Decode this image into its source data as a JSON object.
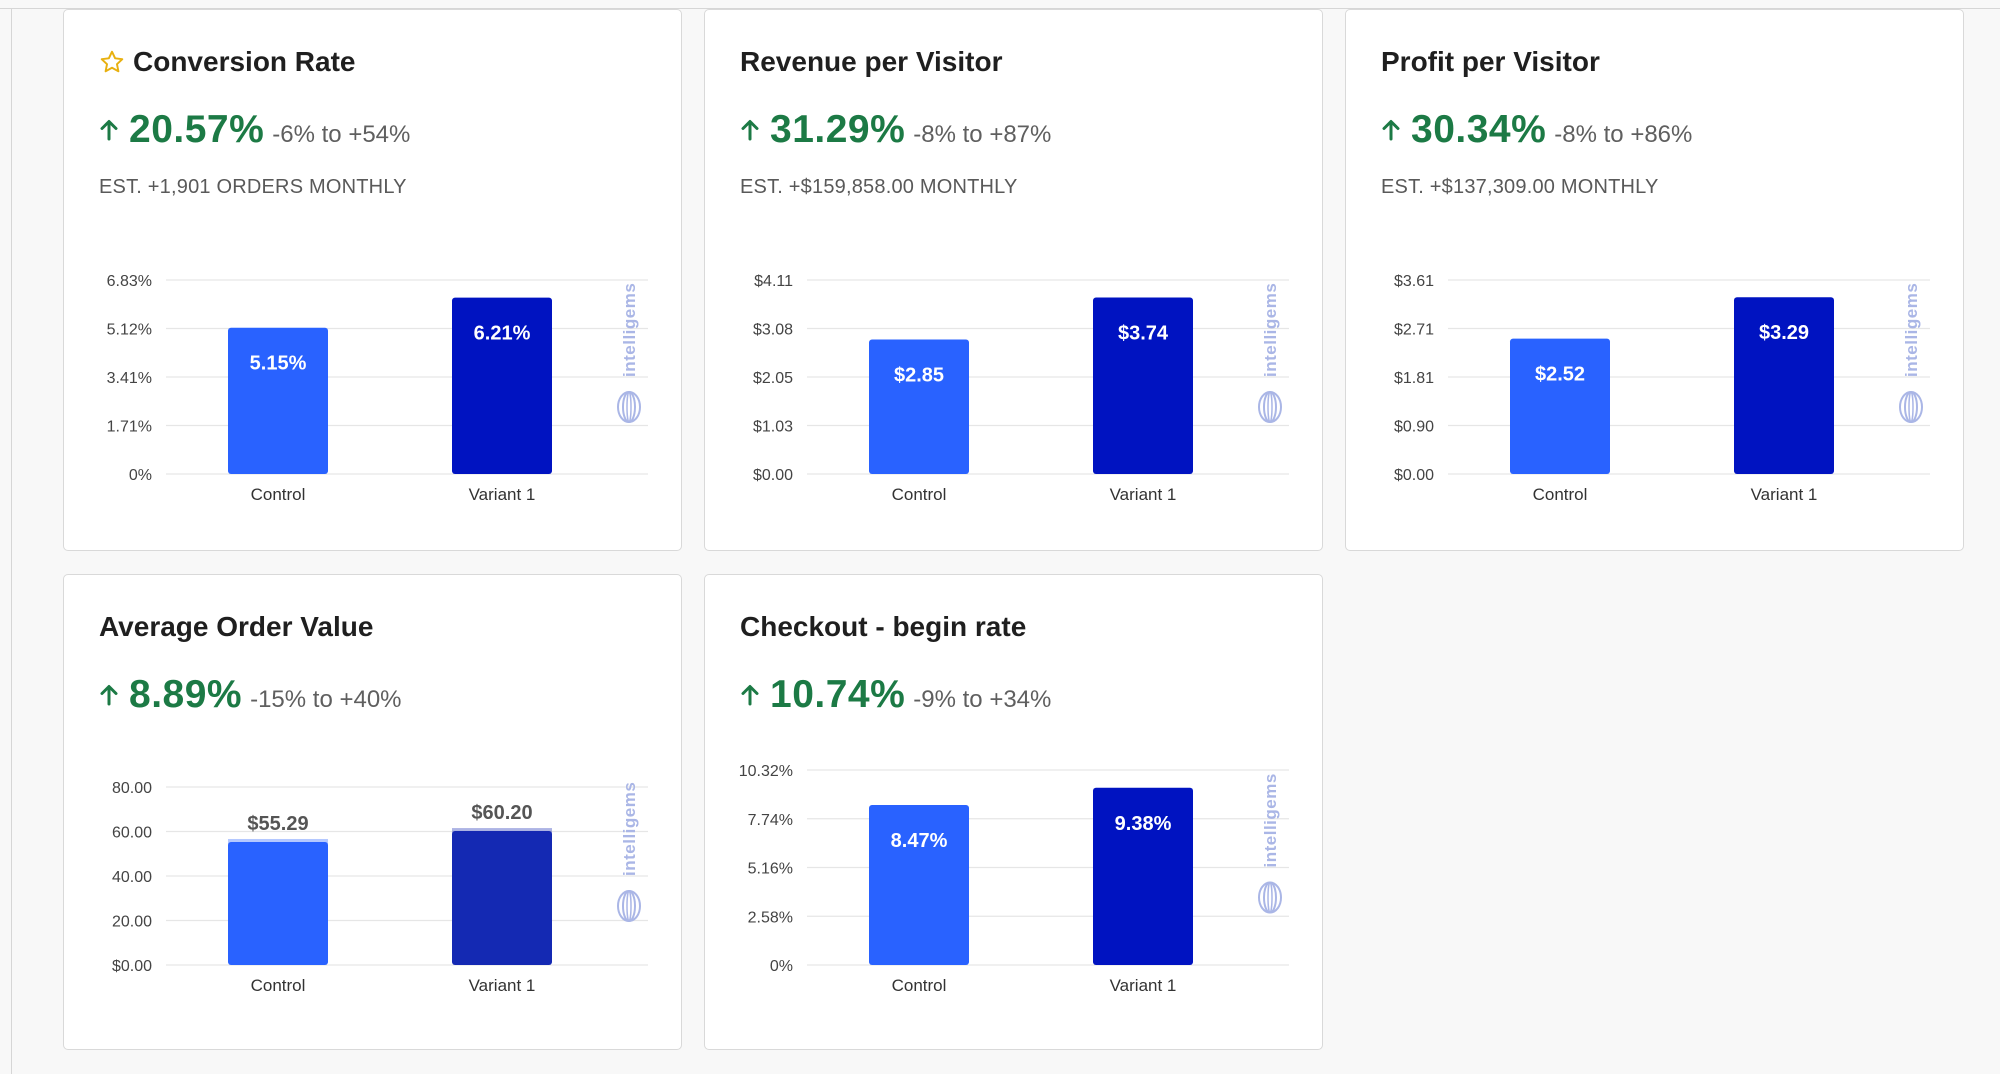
{
  "colors": {
    "control": "#2962ff",
    "variant": "#0013c1",
    "variant_aov": "#1429b3",
    "positive": "#1c7a45",
    "star": "#e8b00f",
    "grid": "#e6e6e6"
  },
  "watermark": "intelligems",
  "cards": [
    {
      "title": "Conversion Rate",
      "starred": true,
      "lift": "20.57%",
      "range": "-6% to +54%",
      "estimate": "EST. +1,901 ORDERS MONTHLY",
      "chart_data": {
        "type": "bar",
        "categories": [
          "Control",
          "Variant 1"
        ],
        "values": [
          5.15,
          6.21
        ],
        "value_labels": [
          "5.15%",
          "6.21%"
        ],
        "yticks": [
          "0%",
          "1.71%",
          "3.41%",
          "5.12%",
          "6.83%"
        ],
        "ylim": [
          0,
          6.83
        ],
        "label_position": "inside"
      }
    },
    {
      "title": "Revenue per Visitor",
      "starred": false,
      "lift": "31.29%",
      "range": "-8% to +87%",
      "estimate": "EST. +$159,858.00 MONTHLY",
      "chart_data": {
        "type": "bar",
        "categories": [
          "Control",
          "Variant 1"
        ],
        "values": [
          2.85,
          3.74
        ],
        "value_labels": [
          "$2.85",
          "$3.74"
        ],
        "yticks": [
          "$0.00",
          "$1.03",
          "$2.05",
          "$3.08",
          "$4.11"
        ],
        "ylim": [
          0,
          4.11
        ],
        "label_position": "inside"
      }
    },
    {
      "title": "Profit per Visitor",
      "starred": false,
      "lift": "30.34%",
      "range": "-8% to +86%",
      "estimate": "EST. +$137,309.00 MONTHLY",
      "chart_data": {
        "type": "bar",
        "categories": [
          "Control",
          "Variant 1"
        ],
        "values": [
          2.52,
          3.29
        ],
        "value_labels": [
          "$2.52",
          "$3.29"
        ],
        "yticks": [
          "$0.00",
          "$0.90",
          "$1.81",
          "$2.71",
          "$3.61"
        ],
        "ylim": [
          0,
          3.61
        ],
        "label_position": "inside"
      }
    },
    {
      "title": "Average Order Value",
      "starred": false,
      "lift": "8.89%",
      "range": "-15% to +40%",
      "estimate": "",
      "chart_data": {
        "type": "bar",
        "categories": [
          "Control",
          "Variant 1"
        ],
        "values": [
          55.29,
          60.2
        ],
        "value_labels": [
          "$55.29",
          "$60.20"
        ],
        "yticks": [
          "$0.00",
          "20.00",
          "40.00",
          "60.00",
          "80.00"
        ],
        "ylim": [
          0,
          80
        ],
        "label_position": "above"
      }
    },
    {
      "title": "Checkout - begin rate",
      "starred": false,
      "lift": "10.74%",
      "range": "-9% to +34%",
      "estimate": "",
      "chart_data": {
        "type": "bar",
        "categories": [
          "Control",
          "Variant 1"
        ],
        "values": [
          8.47,
          9.38
        ],
        "value_labels": [
          "8.47%",
          "9.38%"
        ],
        "yticks": [
          "0%",
          "2.58%",
          "5.16%",
          "7.74%",
          "10.32%"
        ],
        "ylim": [
          0,
          10.32
        ],
        "label_position": "inside"
      }
    }
  ]
}
